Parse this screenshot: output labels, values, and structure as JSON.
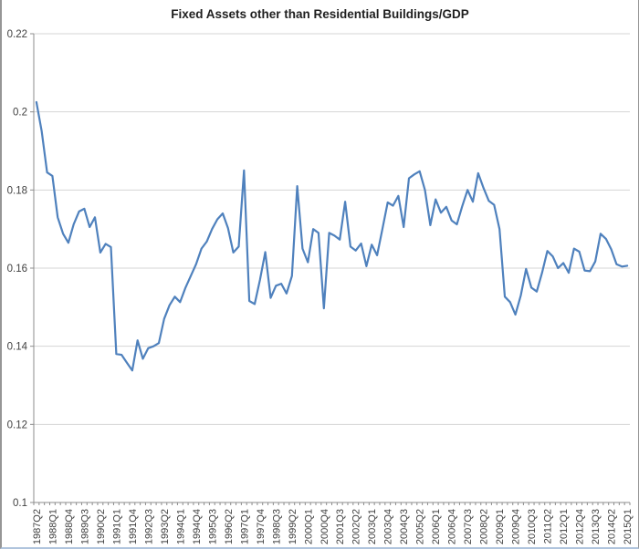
{
  "chart": {
    "title": "Fixed Assets other than Residential Buildings/GDP",
    "line_color": "#4F81BD",
    "grid_color": "#D4D4D4",
    "axis_color": "#8C8C8C",
    "label_color": "#3F3F3F",
    "title_color": "#1F1F1F"
  },
  "chart_data": {
    "type": "line",
    "title": "Fixed Assets other than Residential Buildings/GDP",
    "xlabel": "",
    "ylabel": "",
    "x_start": "1987Q2",
    "x_end": "2015Q1",
    "x_label_step": 3,
    "x_labels": [
      "1987Q2",
      "1988Q1",
      "1988Q4",
      "1989Q3",
      "1990Q2",
      "1991Q1",
      "1991Q4",
      "1992Q3",
      "1993Q2",
      "1994Q1",
      "1994Q4",
      "1995Q3",
      "1996Q2",
      "1997Q1",
      "1997Q4",
      "1998Q3",
      "1999Q2",
      "2000Q1",
      "2000Q4",
      "2001Q3",
      "2002Q2",
      "2003Q1",
      "2003Q4",
      "2004Q3",
      "2005Q2",
      "2006Q1",
      "2006Q4",
      "2007Q3",
      "2008Q2",
      "2009Q1",
      "2009Q4",
      "2010Q3",
      "2011Q2",
      "2012Q1",
      "2012Q4",
      "2013Q3",
      "2014Q2",
      "2015Q1"
    ],
    "y_tick_labels": [
      "0.22",
      "0.2",
      "0.18",
      "0.16",
      "0.14",
      "0.12",
      "0.1"
    ],
    "y_tick_values": [
      0.22,
      0.2,
      0.18,
      0.16,
      0.14,
      0.12,
      0.1
    ],
    "ylim": [
      0.1,
      0.22
    ],
    "grid": true,
    "legend": false,
    "values": [
      0.2025,
      0.195,
      0.1845,
      0.1836,
      0.173,
      0.1688,
      0.1665,
      0.1712,
      0.1745,
      0.1752,
      0.1705,
      0.173,
      0.164,
      0.1662,
      0.1654,
      0.138,
      0.1378,
      0.1358,
      0.1338,
      0.1415,
      0.1368,
      0.1395,
      0.14,
      0.1408,
      0.147,
      0.1505,
      0.1527,
      0.1513,
      0.155,
      0.158,
      0.161,
      0.165,
      0.1668,
      0.17,
      0.1725,
      0.174,
      0.1702,
      0.164,
      0.1655,
      0.185,
      0.1516,
      0.1508,
      0.157,
      0.1641,
      0.1524,
      0.1555,
      0.156,
      0.1535,
      0.158,
      0.181,
      0.165,
      0.1615,
      0.17,
      0.169,
      0.1497,
      0.169,
      0.1683,
      0.1673,
      0.177,
      0.1655,
      0.1645,
      0.1663,
      0.1605,
      0.166,
      0.1633,
      0.17,
      0.1768,
      0.176,
      0.1785,
      0.1705,
      0.183,
      0.184,
      0.1848,
      0.18,
      0.171,
      0.1776,
      0.1742,
      0.1757,
      0.1722,
      0.1712,
      0.1758,
      0.18,
      0.177,
      0.1843,
      0.1805,
      0.1772,
      0.1762,
      0.17,
      0.1527,
      0.1513,
      0.1481,
      0.153,
      0.1598,
      0.155,
      0.154,
      0.1588,
      0.1644,
      0.163,
      0.16,
      0.1613,
      0.1588,
      0.165,
      0.1642,
      0.1594,
      0.1592,
      0.1617,
      0.1688,
      0.1675,
      0.1648,
      0.161,
      0.1604,
      0.1606
    ]
  }
}
